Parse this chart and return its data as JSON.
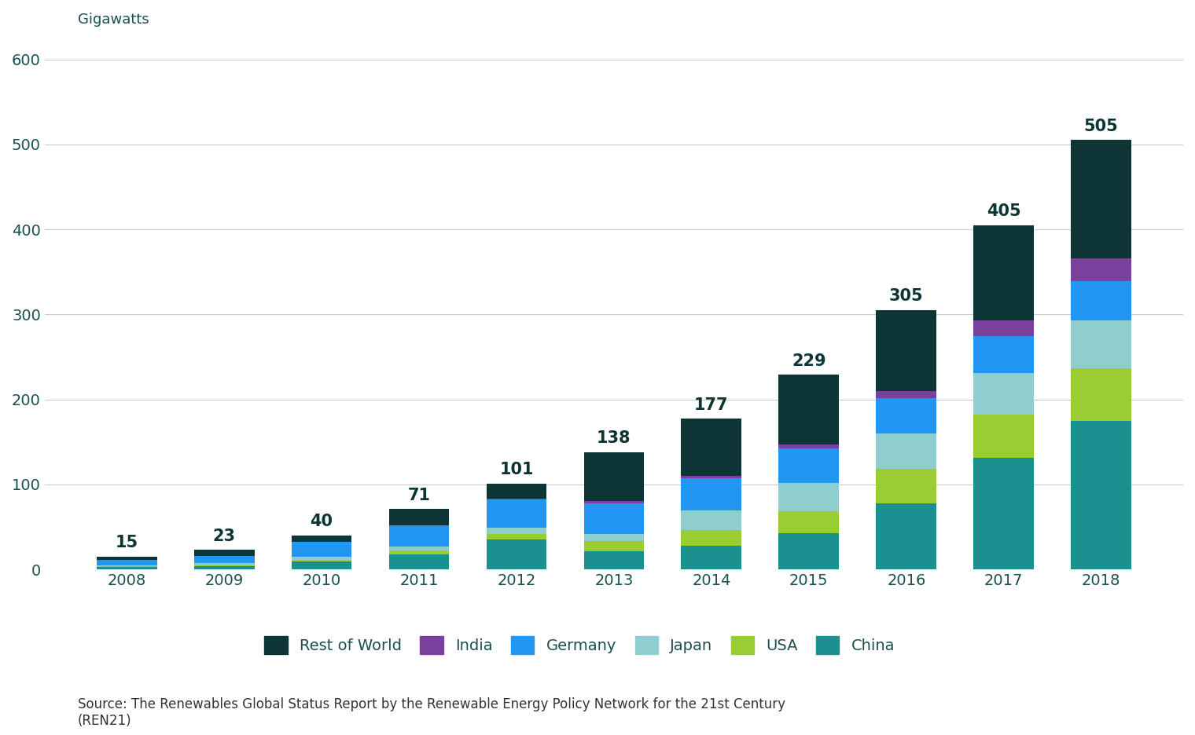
{
  "years": [
    2008,
    2009,
    2010,
    2011,
    2012,
    2013,
    2014,
    2015,
    2016,
    2017,
    2018
  ],
  "totals": [
    15,
    23,
    40,
    71,
    101,
    138,
    177,
    229,
    305,
    405,
    505
  ],
  "series": {
    "China": [
      3,
      4,
      9,
      18,
      35,
      21,
      28,
      43,
      78,
      131,
      175
    ],
    "USA": [
      1,
      2,
      2,
      4,
      7,
      12,
      18,
      25,
      40,
      51,
      62
    ],
    "Japan": [
      1,
      1,
      4,
      5,
      7,
      9,
      23,
      34,
      42,
      49,
      56
    ],
    "Germany": [
      6,
      9,
      17,
      25,
      33,
      36,
      38,
      40,
      41,
      43,
      46
    ],
    "India": [
      0,
      0,
      0,
      0,
      1,
      2,
      3,
      5,
      9,
      19,
      27
    ],
    "Rest of World": [
      4,
      7,
      8,
      19,
      18,
      58,
      67,
      82,
      95,
      112,
      139
    ]
  },
  "colors": {
    "China": "#1a9090",
    "USA": "#9ACD32",
    "Japan": "#8ECECE",
    "Germany": "#2196F3",
    "India": "#7B3F9E",
    "Rest of World": "#0D3535"
  },
  "legend_order": [
    "Rest of World",
    "India",
    "Germany",
    "Japan",
    "USA",
    "China"
  ],
  "ylabel": "Gigawatts",
  "ylim": [
    0,
    620
  ],
  "yticks": [
    0,
    100,
    200,
    300,
    400,
    500,
    600
  ],
  "background_color": "#ffffff",
  "source_text": "Source: The Renewables Global Status Report by the Renewable Energy Policy Network for the 21st Century\n(REN21)",
  "label_fontsize": 13,
  "tick_fontsize": 14,
  "legend_fontsize": 14,
  "annotation_fontsize": 15,
  "source_fontsize": 12,
  "tick_color": "#1a5050",
  "annotation_color": "#0D3535"
}
